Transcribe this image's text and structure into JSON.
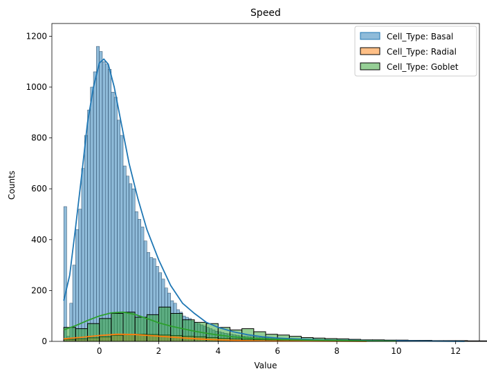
{
  "chart_data": {
    "type": "histogram",
    "title": "Speed",
    "xlabel": "Value",
    "ylabel": "Counts",
    "xlim": [
      -1.6,
      12.8
    ],
    "ylim": [
      0,
      1250
    ],
    "xticks": [
      0,
      2,
      4,
      6,
      8,
      10,
      12
    ],
    "yticks": [
      0,
      200,
      400,
      600,
      800,
      1000,
      1200
    ],
    "grid": false,
    "legend_position": "upper-right",
    "series": [
      {
        "name": "Cell_Type: Basal",
        "color": "#1f77b4",
        "bin_width": 0.1,
        "bin_start": -1.2,
        "counts": [
          530,
          20,
          150,
          300,
          440,
          520,
          680,
          810,
          910,
          1000,
          1060,
          1160,
          1140,
          1100,
          1090,
          1070,
          980,
          960,
          870,
          810,
          690,
          650,
          620,
          600,
          510,
          480,
          450,
          395,
          350,
          330,
          325,
          295,
          270,
          245,
          210,
          190,
          160,
          150,
          125,
          115,
          100,
          95,
          90,
          80,
          75,
          70,
          65,
          60,
          55,
          50,
          45,
          40,
          38,
          35,
          32,
          30,
          28,
          26,
          24,
          22,
          21,
          20,
          19,
          18,
          17,
          16,
          15,
          14,
          13,
          12,
          11,
          10,
          10,
          9,
          9,
          8,
          8,
          7,
          7,
          6,
          6,
          6,
          5,
          5,
          5,
          4,
          4,
          4,
          3,
          3,
          3,
          3,
          2,
          2,
          2,
          2,
          2,
          2,
          1,
          1,
          1,
          1,
          1,
          1,
          1,
          1,
          1,
          1,
          1,
          1,
          1,
          1,
          1,
          1,
          1,
          1,
          1,
          1,
          1,
          1,
          1,
          1,
          1,
          1,
          1,
          1,
          1,
          1
        ],
        "kde": [
          [
            -1.2,
            160
          ],
          [
            -1.0,
            260
          ],
          [
            -0.8,
            450
          ],
          [
            -0.6,
            650
          ],
          [
            -0.4,
            860
          ],
          [
            -0.2,
            1000
          ],
          [
            0.0,
            1095
          ],
          [
            0.15,
            1110
          ],
          [
            0.3,
            1090
          ],
          [
            0.5,
            1000
          ],
          [
            0.7,
            880
          ],
          [
            1.0,
            700
          ],
          [
            1.3,
            560
          ],
          [
            1.6,
            440
          ],
          [
            2.0,
            320
          ],
          [
            2.4,
            220
          ],
          [
            2.8,
            150
          ],
          [
            3.2,
            110
          ],
          [
            3.6,
            75
          ],
          [
            4.0,
            55
          ],
          [
            4.5,
            38
          ],
          [
            5.0,
            26
          ],
          [
            5.5,
            18
          ],
          [
            6.0,
            13
          ],
          [
            6.5,
            10
          ],
          [
            7.0,
            8
          ],
          [
            7.5,
            6
          ],
          [
            8.0,
            5
          ],
          [
            8.5,
            4
          ],
          [
            9.0,
            3
          ],
          [
            9.5,
            2
          ],
          [
            10.0,
            2
          ],
          [
            11.0,
            1
          ],
          [
            12.3,
            0
          ]
        ]
      },
      {
        "name": "Cell_Type: Radial",
        "color": "#ff7f0e",
        "bin_width": 0.4,
        "bin_start": -1.2,
        "counts": [
          8,
          10,
          14,
          18,
          24,
          26,
          28,
          27,
          25,
          23,
          20,
          18,
          15,
          12,
          10,
          8,
          7,
          6,
          5,
          4,
          3,
          3,
          2,
          2,
          2,
          1,
          1,
          1,
          1,
          1,
          1,
          0,
          0,
          0,
          0,
          0,
          0,
          0,
          0,
          0
        ],
        "kde": [
          [
            -1.2,
            10
          ],
          [
            -0.6,
            16
          ],
          [
            0.0,
            23
          ],
          [
            0.6,
            28
          ],
          [
            1.2,
            27
          ],
          [
            1.8,
            22
          ],
          [
            2.4,
            17
          ],
          [
            3.0,
            12
          ],
          [
            3.6,
            8
          ],
          [
            4.2,
            5
          ],
          [
            4.8,
            3
          ],
          [
            5.4,
            2
          ],
          [
            6.0,
            1
          ],
          [
            7.0,
            1
          ],
          [
            9.0,
            0
          ]
        ]
      },
      {
        "name": "Cell_Type: Goblet",
        "color": "#2ca02c",
        "bin_width": 0.4,
        "bin_start": -1.2,
        "counts": [
          55,
          50,
          70,
          90,
          110,
          115,
          95,
          105,
          135,
          110,
          85,
          75,
          70,
          55,
          45,
          50,
          38,
          28,
          25,
          20,
          15,
          13,
          11,
          10,
          8,
          6,
          6,
          5,
          5,
          4,
          4,
          3,
          3,
          3,
          2,
          2,
          2,
          2,
          1,
          1
        ],
        "kde": [
          [
            -1.2,
            45
          ],
          [
            -0.8,
            62
          ],
          [
            -0.4,
            82
          ],
          [
            0.0,
            100
          ],
          [
            0.4,
            112
          ],
          [
            0.8,
            115
          ],
          [
            1.2,
            106
          ],
          [
            1.6,
            90
          ],
          [
            2.0,
            73
          ],
          [
            2.4,
            60
          ],
          [
            2.8,
            50
          ],
          [
            3.2,
            40
          ],
          [
            3.6,
            32
          ],
          [
            4.0,
            25
          ],
          [
            4.5,
            18
          ],
          [
            5.0,
            13
          ],
          [
            5.5,
            10
          ],
          [
            6.0,
            8
          ],
          [
            7.0,
            5
          ],
          [
            8.0,
            4
          ],
          [
            9.0,
            2
          ],
          [
            10.0,
            1
          ]
        ]
      }
    ]
  }
}
